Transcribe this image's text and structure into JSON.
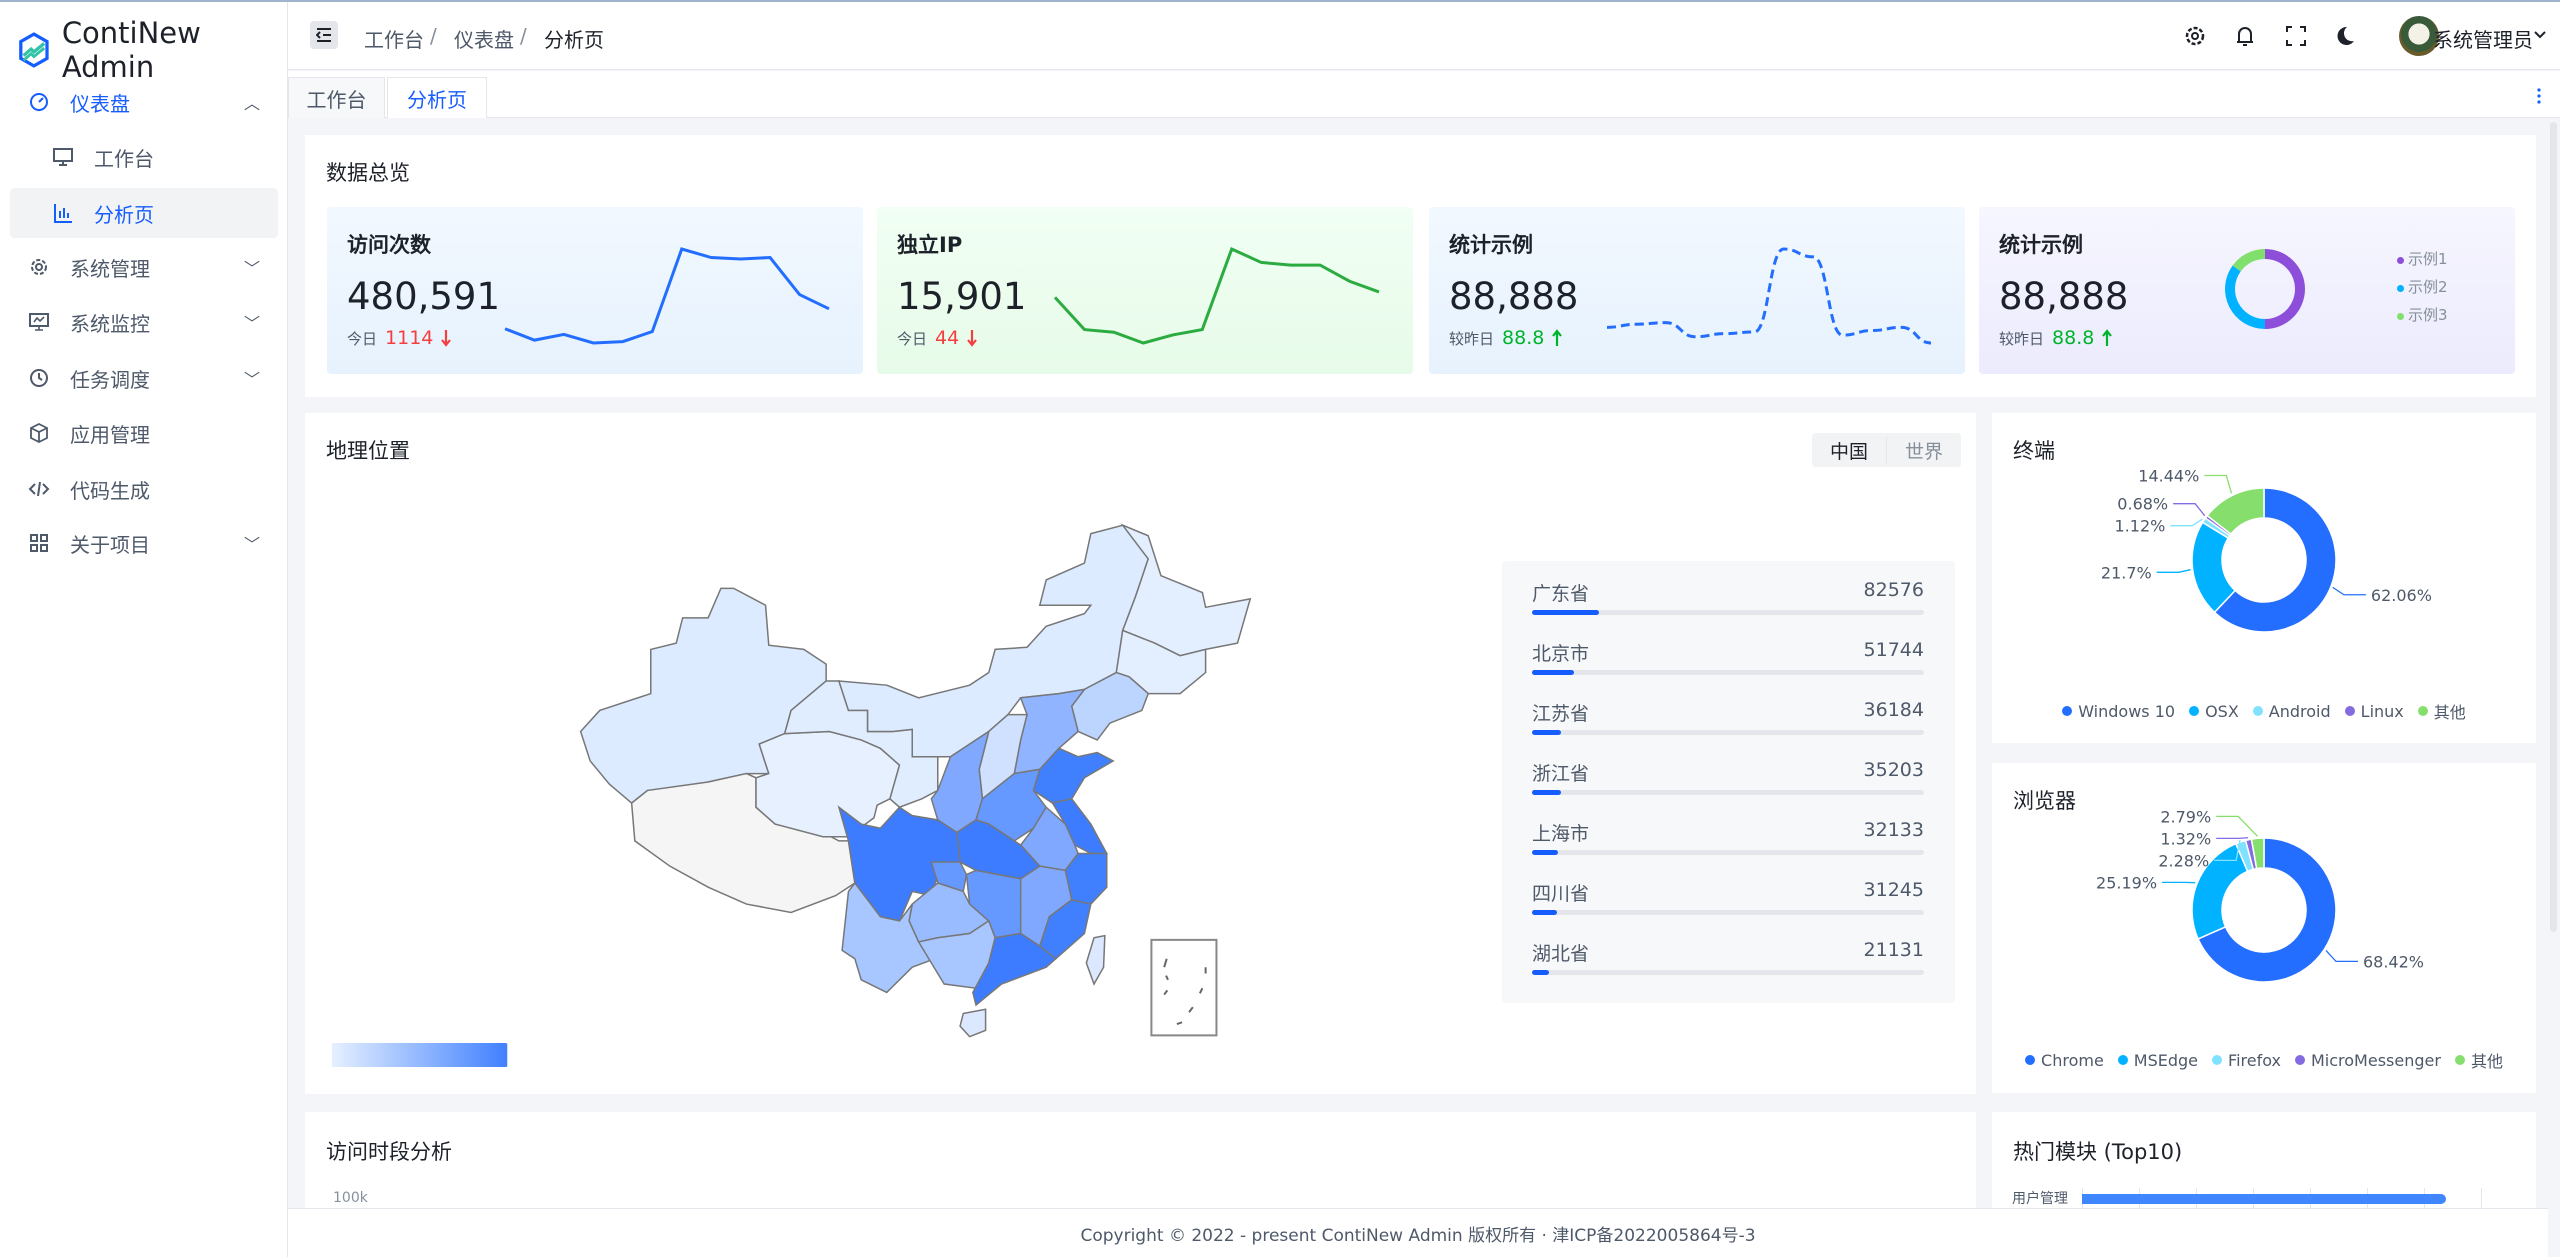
{
  "app": {
    "name": "ContiNew Admin",
    "brand_color": "#165dff"
  },
  "sidebar": {
    "items": [
      {
        "label": "仪表盘",
        "icon": "dashboard-icon",
        "expanded": true
      },
      {
        "label": "工作台",
        "icon": "desktop-icon",
        "sub": true
      },
      {
        "label": "分析页",
        "icon": "bar-chart-icon",
        "sub": true,
        "selected": true
      },
      {
        "label": "系统管理",
        "icon": "settings-icon"
      },
      {
        "label": "系统监控",
        "icon": "monitor-icon"
      },
      {
        "label": "任务调度",
        "icon": "clock-icon"
      },
      {
        "label": "应用管理",
        "icon": "cube-icon"
      },
      {
        "label": "代码生成",
        "icon": "code-icon"
      },
      {
        "label": "关于项目",
        "icon": "apps-icon"
      }
    ]
  },
  "header": {
    "breadcrumb": [
      "工作台",
      "仪表盘",
      "分析页"
    ],
    "separator": "/",
    "user": "系统管理员"
  },
  "tabs": [
    {
      "label": "工作台"
    },
    {
      "label": "分析页",
      "active": true
    }
  ],
  "overview": {
    "title": "数据总览",
    "cards": [
      {
        "title": "访问次数",
        "value": "480,591",
        "sub_label": "今日",
        "sub_value": "1114",
        "trend": "down",
        "spark": [
          12,
          8,
          10,
          7,
          7.5,
          11,
          40,
          37,
          36.5,
          37,
          24,
          19
        ],
        "color": "#246eff"
      },
      {
        "title": "独立IP",
        "value": "15,901",
        "sub_label": "今日",
        "sub_value": "44",
        "trend": "down",
        "spark": [
          22,
          10,
          9,
          5,
          8,
          10,
          40,
          35,
          34,
          34,
          28,
          24
        ],
        "color": "#2cab40"
      },
      {
        "title": "统计示例",
        "value": "88,888",
        "sub_label": "较昨日",
        "sub_value": "88.8",
        "trend": "up",
        "spark": [
          10,
          12,
          13,
          4,
          6,
          7,
          60,
          55,
          5,
          8,
          10,
          0
        ],
        "color": "#246eff"
      },
      {
        "title": "统计示例",
        "value": "88,888",
        "sub_label": "较昨日",
        "sub_value": "88.8",
        "trend": "up",
        "donut": [
          {
            "name": "示例1",
            "value": 50,
            "color": "#8d4eda"
          },
          {
            "name": "示例2",
            "value": 35,
            "color": "#00b2ff"
          },
          {
            "name": "示例3",
            "value": 15,
            "color": "#81e06c"
          }
        ]
      }
    ]
  },
  "geo": {
    "title": "地理位置",
    "toggle": [
      "中国",
      "世界"
    ],
    "ranking": [
      {
        "name": "广东省",
        "value": "82576",
        "percent": 17.2
      },
      {
        "name": "北京市",
        "value": "51744",
        "percent": 10.8
      },
      {
        "name": "江苏省",
        "value": "36184",
        "percent": 7.5
      },
      {
        "name": "浙江省",
        "value": "35203",
        "percent": 7.3
      },
      {
        "name": "上海市",
        "value": "32133",
        "percent": 6.7
      },
      {
        "name": "四川省",
        "value": "31245",
        "percent": 6.5
      },
      {
        "name": "湖北省",
        "value": "21131",
        "percent": 4.4
      }
    ]
  },
  "terminal": {
    "title": "终端",
    "slices": [
      {
        "name": "Windows 10",
        "value": 62.06,
        "label": "62.06%",
        "color": "#246eff"
      },
      {
        "name": "OSX",
        "value": 21.7,
        "label": "21.7%",
        "color": "#00b2ff"
      },
      {
        "name": "Android",
        "value": 1.12,
        "label": "1.12%",
        "color": "#81e2ff"
      },
      {
        "name": "Linux",
        "value": 0.68,
        "label": "0.68%",
        "color": "#846be1"
      },
      {
        "name": "其他",
        "value": 14.44,
        "label": "14.44%",
        "color": "#86df6c"
      }
    ]
  },
  "browser": {
    "title": "浏览器",
    "slices": [
      {
        "name": "Chrome",
        "value": 68.42,
        "label": "68.42%",
        "color": "#246eff"
      },
      {
        "name": "MSEdge",
        "value": 25.19,
        "label": "25.19%",
        "color": "#00b2ff"
      },
      {
        "name": "Firefox",
        "value": 2.28,
        "label": "2.28%",
        "color": "#81e2ff"
      },
      {
        "name": "MicroMessenger",
        "value": 1.32,
        "label": "1.32%",
        "color": "#846be1"
      },
      {
        "name": "其他",
        "value": 2.79,
        "label": "2.79%",
        "color": "#86df6c"
      }
    ]
  },
  "period": {
    "title": "访问时段分析",
    "y_tick": "100k"
  },
  "hot": {
    "title": "热门模块 (Top10)",
    "first_item": "用户管理"
  },
  "footer": {
    "text": "Copyright © 2022 - present ContiNew Admin 版权所有 · 津ICP备2022005864号-3"
  }
}
